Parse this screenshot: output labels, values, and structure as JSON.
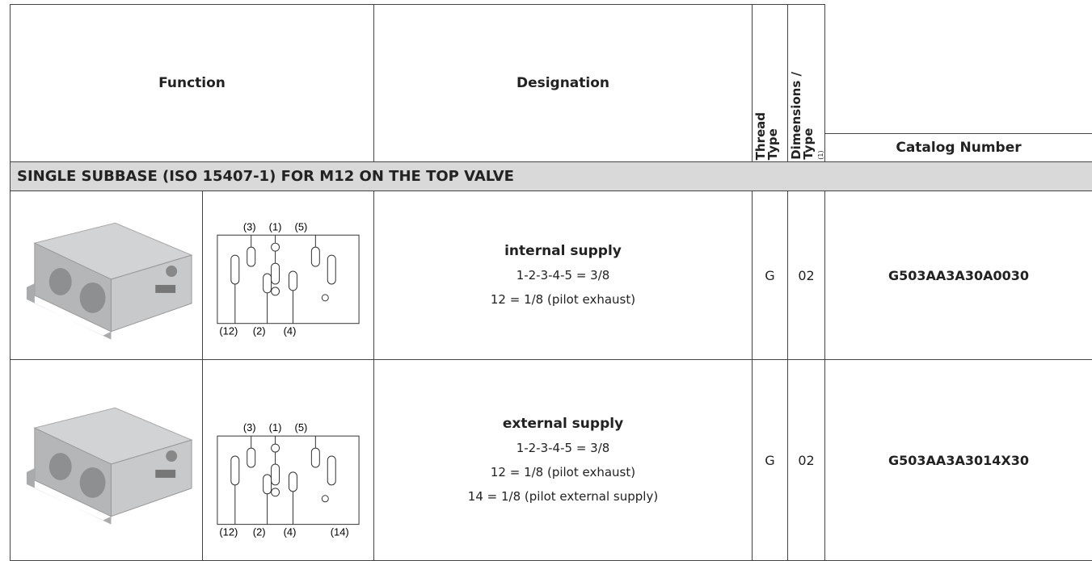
{
  "header": {
    "function": "Function",
    "designation": "Designation",
    "thread_type": [
      "Thread",
      "Type"
    ],
    "dimensions_type": [
      "Dimensions /",
      "Type"
    ],
    "dimensions_footnote": "(1)",
    "catalog_number": "Catalog Number"
  },
  "section": "SINGLE SUBBASE (ISO 15407-1) FOR M12 ON THE TOP VALVE",
  "rows": [
    {
      "ports_top": [
        "(3)",
        "(1)",
        "(5)"
      ],
      "ports_bottom": [
        "(12)",
        "(2)",
        "(4)"
      ],
      "designation_title": "internal supply",
      "designation_lines": [
        "1-2-3-4-5 = 3/8",
        "12 = 1/8 (pilot exhaust)"
      ],
      "thread": "G",
      "dimensions": "02",
      "catalog_number": "G503AA3A30A0030"
    },
    {
      "ports_top": [
        "(3)",
        "(1)",
        "(5)"
      ],
      "ports_bottom": [
        "(12)",
        "(2)",
        "(4)",
        "(14)"
      ],
      "designation_title": "external supply",
      "designation_lines": [
        "1-2-3-4-5 = 3/8",
        "12 = 1/8 (pilot exhaust)",
        "14 = 1/8 (pilot external supply)"
      ],
      "thread": "G",
      "dimensions": "02",
      "catalog_number": "G503AA3A3014X30"
    }
  ]
}
